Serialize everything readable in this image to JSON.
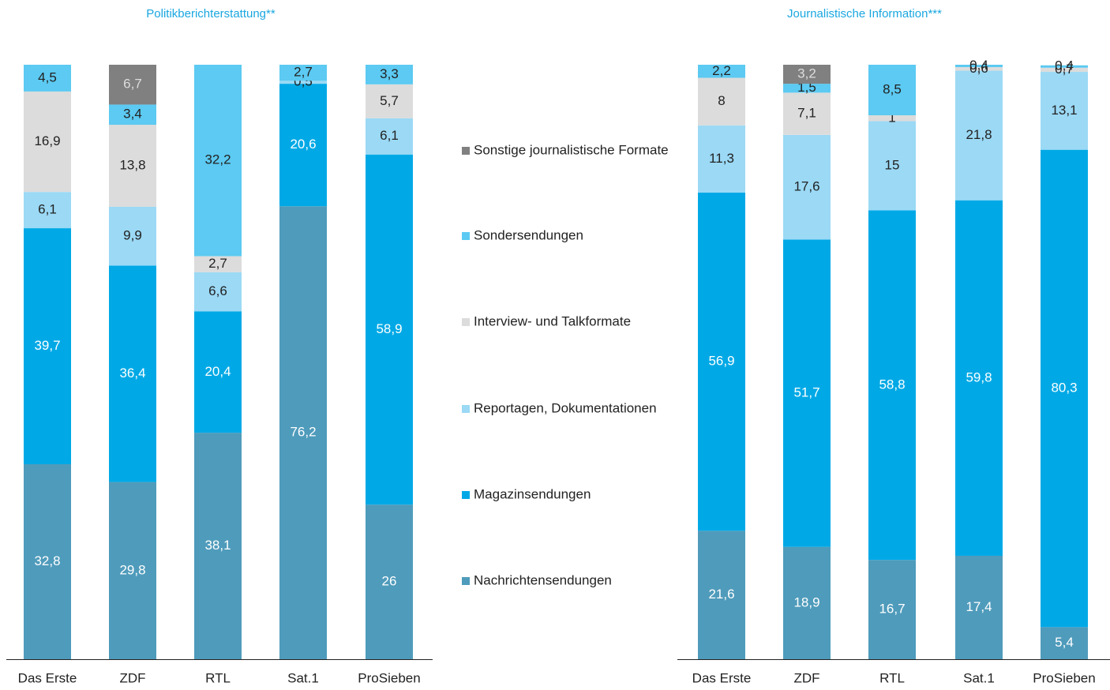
{
  "chart_data": [
    {
      "type": "stacked_bar",
      "title": "Politikberichterstattung**",
      "categories": [
        "Das Erste",
        "ZDF",
        "RTL",
        "Sat.1",
        "ProSieben"
      ],
      "ylim": [
        0,
        100
      ],
      "series": [
        {
          "name": "Nachrichtensendungen",
          "color": "#4f9bbb",
          "values": [
            32.8,
            29.8,
            38.1,
            76.2,
            26
          ],
          "value_labels": [
            "32,8",
            "29,8",
            "38,1",
            "76,2",
            "26"
          ]
        },
        {
          "name": "Magazinsendungen",
          "color": "#00a9e6",
          "values": [
            39.7,
            36.4,
            20.4,
            20.6,
            58.9
          ],
          "value_labels": [
            "39,7",
            "36,4",
            "20,4",
            "20,6",
            "58,9"
          ]
        },
        {
          "name": "Reportagen, Dokumentationen",
          "color": "#9bd9f5",
          "values": [
            6.1,
            9.9,
            6.6,
            0.5,
            6.1
          ],
          "value_labels": [
            "6,1",
            "9,9",
            "6,6",
            "0,5",
            "6,1"
          ]
        },
        {
          "name": "Interview- und Talkformate",
          "color": "#dcdcdc",
          "values": [
            16.9,
            13.8,
            2.7,
            null,
            5.7
          ],
          "value_labels": [
            "16,9",
            "13,8",
            "2,7",
            null,
            "5,7"
          ]
        },
        {
          "name": "Sondersendungen",
          "color": "#5ccaf2",
          "values": [
            4.5,
            3.4,
            32.2,
            2.7,
            3.3
          ],
          "value_labels": [
            "4,5",
            "3,4",
            "32,2",
            "2,7",
            "3,3"
          ]
        },
        {
          "name": "Sonstige journalistische Formate",
          "color": "#808080",
          "values": [
            null,
            6.7,
            null,
            null,
            null
          ],
          "value_labels": [
            null,
            "6,7",
            null,
            null,
            null
          ]
        }
      ]
    },
    {
      "type": "stacked_bar",
      "title": "Journalistische Information***",
      "categories": [
        "Das Erste",
        "ZDF",
        "RTL",
        "Sat.1",
        "ProSieben"
      ],
      "ylim": [
        0,
        100
      ],
      "series": [
        {
          "color": "#4f9bbb",
          "values": [
            21.6,
            18.9,
            16.7,
            17.4,
            5.4
          ],
          "value_labels": [
            "21,6",
            "18,9",
            "16,7",
            "17,4",
            "5,4"
          ]
        },
        {
          "color": "#00a9e6",
          "values": [
            56.9,
            51.7,
            58.8,
            59.8,
            80.3
          ],
          "value_labels": [
            "56,9",
            "51,7",
            "58,8",
            "59,8",
            "80,3"
          ]
        },
        {
          "color": "#9bd9f5",
          "values": [
            11.3,
            17.6,
            15,
            21.8,
            13.1
          ],
          "value_labels": [
            "11,3",
            "17,6",
            "15",
            "21,8",
            "13,1"
          ]
        },
        {
          "color": "#dcdcdc",
          "values": [
            8,
            7.1,
            1,
            0.6,
            0.7
          ],
          "value_labels": [
            "8",
            "7,1",
            "1",
            "0,6",
            "0,7"
          ]
        },
        {
          "color": "#5ccaf2",
          "values": [
            2.2,
            1.5,
            8.5,
            0.4,
            0.4
          ],
          "value_labels": [
            "2,2",
            "1,5",
            "8,5",
            "0,4",
            "0,4"
          ]
        },
        {
          "color": "#808080",
          "values": [
            null,
            3.2,
            null,
            null,
            null
          ],
          "value_labels": [
            null,
            "3,2",
            null,
            null,
            null
          ]
        }
      ]
    }
  ]
}
